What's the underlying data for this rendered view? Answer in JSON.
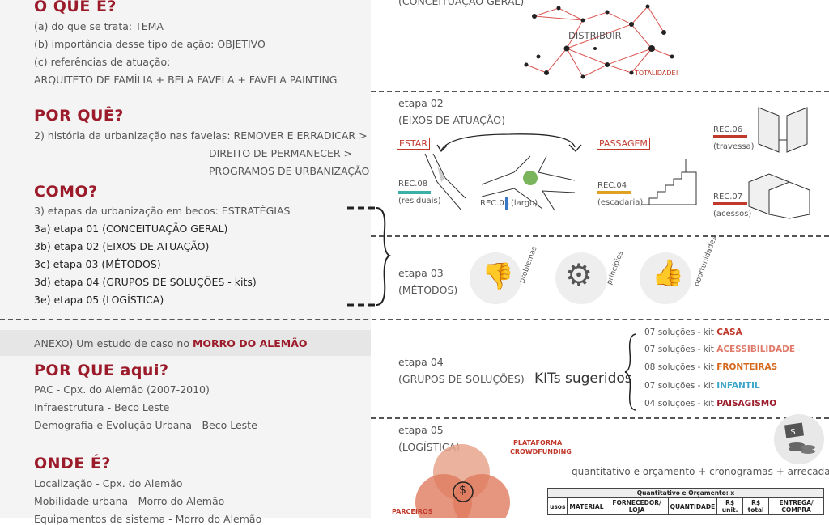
{
  "o_que_e": {
    "title": "O QUE É?",
    "lines": [
      "(a) do que se trata: TEMA",
      "(b) importância desse tipo de ação: OBJETIVO",
      "(c) referências de atuação:",
      "ARQUITETO DE FAMÍLIA + BELA FAVELA + FAVELA PAINTING"
    ]
  },
  "por_que": {
    "title": "POR QUÊ?",
    "lines": [
      "2) história da urbanização nas favelas: REMOVER E ERRADICAR >",
      "DIREITO DE PERMANECER >",
      "PROGRAMOS DE URBANIZAÇÃO"
    ]
  },
  "como": {
    "title": "COMO?",
    "lines": [
      "3) etapas da urbanização em becos: ESTRATÉGIAS",
      "3a) etapa 01 (CONCEITUAÇÃO GERAL)",
      "3b) etapa 02 (EIXOS DE ATUAÇÃO)",
      "3c) etapa 03 (MÉTODOS)",
      "3d) etapa 04 (GRUPOS DE SOLUÇÕES - kits)",
      "3e) etapa 05 (LOGÍSTICA)"
    ]
  },
  "anexo": {
    "prefix": "ANEXO) Um estudo de caso no ",
    "highlight": "MORRO DO ALEMÃO"
  },
  "por_que_aqui": {
    "title": "POR QUE aqui?",
    "lines": [
      "PAC - Cpx. do Alemão (2007-2010)",
      "Infraestrutura - Beco Leste",
      "Demografia e Evolução Urbana - Beco Leste"
    ]
  },
  "onde_e": {
    "title": "ONDE É?",
    "lines": [
      "Localização -  Cpx. do Alemão",
      "Mobilidade urbana -  Morro do Alemão",
      "Equipamentos de sistema -  Morro do Alemão"
    ]
  },
  "etapa01": {
    "label": "(CONCEITUAÇÃO GERAL)",
    "center": "DISTRIBUIR",
    "totalidade": "TOTALIDADE!"
  },
  "etapa02": {
    "label": "etapa 02",
    "sub": "(EIXOS DE ATUAÇÃO)",
    "estar": "ESTAR",
    "passagem": "PASSAGEM",
    "rec08": "REC.08",
    "rec08_sub": "(residuais)",
    "rec03": "REC.03",
    "rec03_sub": "(largo)",
    "rec04": "REC.04",
    "rec04_sub": "(escadaria)",
    "rec06": "REC.06",
    "rec06_sub": "(travessa)",
    "rec07": "REC.07",
    "rec07_sub": "(acessos)"
  },
  "etapa03": {
    "label": "etapa 03",
    "sub": "(MÉTODOS)",
    "problemas": "problemas",
    "principios": "princípios",
    "oportunidades": "oportunidades"
  },
  "etapa04": {
    "label": "etapa 04",
    "sub": "(GRUPOS DE SOLUÇÕES)",
    "kits_title": "KITs sugeridos",
    "kits": [
      {
        "prefix": "07 soluções - kit ",
        "name": "CASA",
        "color": "#c0392b"
      },
      {
        "prefix": "07 soluções - kit ",
        "name": "ACESSIBILIDADE",
        "color": "#e07a6a"
      },
      {
        "prefix": "08 soluções - kit ",
        "name": "FRONTEIRAS",
        "color": "#d4661a"
      },
      {
        "prefix": "07 soluções - kit ",
        "name": "INFANTIL",
        "color": "#3aa6c8"
      },
      {
        "prefix": "04 soluções - kit ",
        "name": "PAISAGISMO",
        "color": "#9b1b2a"
      }
    ]
  },
  "etapa05": {
    "label": "etapa 05",
    "sub": "(LOGÍSTICA)",
    "plataforma": "PLATAFORMA",
    "crowdfunding": "CROWDFUNDING",
    "parceiros": "PARCEIROS",
    "dollar": "$",
    "summary": "quantitativo e orçamento + cronogramas + arrecadação",
    "table_title": "Quantitativo e Orçamento: x",
    "table_headers": [
      "usos",
      "MATERIAL",
      "FORNECEDOR/ LOJA",
      "QUANTIDADE",
      "R$ unit.",
      "R$ total",
      "ENTREGA/ COMPRA"
    ]
  },
  "colors": {
    "accent": "#9b1b2a",
    "bg_left": "#f4f4f4",
    "teal": "#3ab0a6",
    "blue": "#3a78c8",
    "orange": "#e0a020",
    "red": "#c0392b"
  }
}
